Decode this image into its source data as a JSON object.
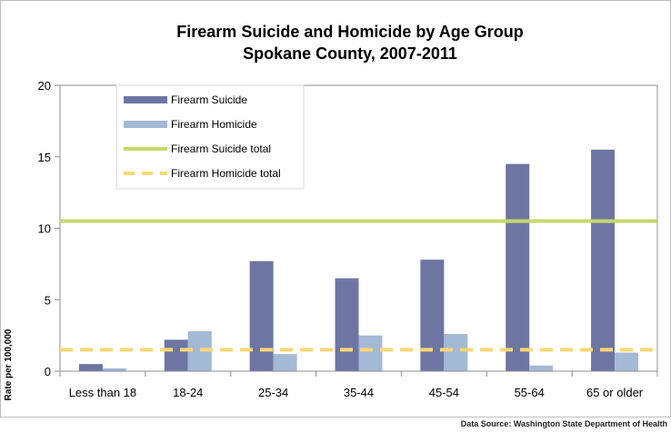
{
  "chart_data": {
    "type": "bar",
    "title_line1": "Firearm Suicide and Homicide by Age Group",
    "title_line2": "Spokane County, 2007-2011",
    "ylabel": "Rate per 100,000",
    "xlabel": "",
    "ylim": [
      0,
      20
    ],
    "yticks": [
      0,
      5,
      10,
      15,
      20
    ],
    "grid": false,
    "legend_position": "top-left",
    "categories": [
      "Less than 18",
      "18-24",
      "25-34",
      "35-44",
      "45-54",
      "55-64",
      "65 or older"
    ],
    "series": [
      {
        "name": "Firearm Suicide",
        "color": "#6d76a3",
        "values": [
          0.5,
          2.2,
          7.7,
          6.5,
          7.8,
          14.5,
          15.5
        ]
      },
      {
        "name": "Firearm Homicide",
        "color": "#a3b9d6",
        "values": [
          0.2,
          2.8,
          1.2,
          2.5,
          2.6,
          0.4,
          1.3
        ]
      }
    ],
    "reference_lines": [
      {
        "name": "Firearm Suicide total",
        "value": 10.5,
        "color": "#c6d96a",
        "style": "solid"
      },
      {
        "name": "Firearm Homicide total",
        "value": 1.5,
        "color": "#f9d774",
        "style": "dashed"
      }
    ],
    "source": "Data Source: Washington State Department of Health"
  }
}
